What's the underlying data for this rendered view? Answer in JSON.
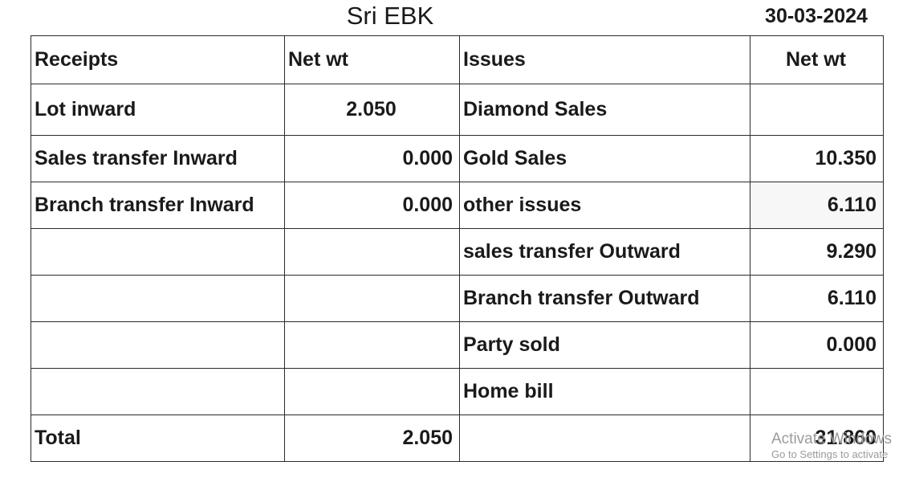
{
  "header": {
    "title": "Sri EBK",
    "date": "30-03-2024"
  },
  "table": {
    "headers": {
      "receipts": "Receipts",
      "receipts_net": "Net wt",
      "issues": "Issues",
      "issues_net": "Net wt"
    },
    "rows": [
      {
        "receipt": "Lot inward",
        "receipt_wt": "2.050",
        "issue": "Diamond Sales",
        "issue_wt": ""
      },
      {
        "receipt": "Sales transfer Inward",
        "receipt_wt": "0.000",
        "issue": "Gold Sales",
        "issue_wt": "10.350"
      },
      {
        "receipt": "Branch transfer Inward",
        "receipt_wt": "0.000",
        "issue": "other issues",
        "issue_wt": "6.110"
      },
      {
        "receipt": "",
        "receipt_wt": "",
        "issue": "sales transfer Outward",
        "issue_wt": "9.290"
      },
      {
        "receipt": "",
        "receipt_wt": "",
        "issue": "Branch transfer Outward",
        "issue_wt": "6.110"
      },
      {
        "receipt": "",
        "receipt_wt": "",
        "issue": "Party sold",
        "issue_wt": "0.000"
      },
      {
        "receipt": "",
        "receipt_wt": "",
        "issue": "Home bill",
        "issue_wt": ""
      }
    ],
    "total": {
      "label": "Total",
      "receipt_wt": "2.050",
      "issue_wt": "31.860"
    }
  },
  "watermark": {
    "line1": "Activate Windows",
    "line2": "Go to Settings to activate"
  }
}
